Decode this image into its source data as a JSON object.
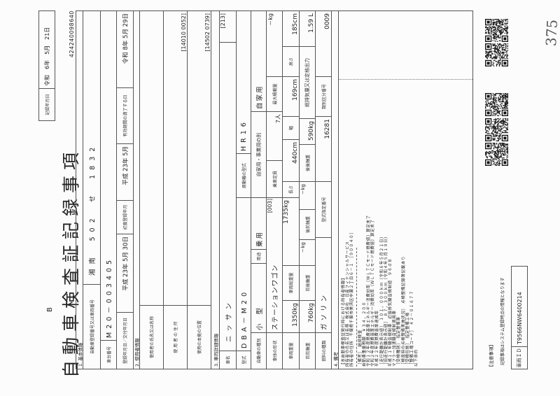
{
  "document": {
    "form_type": "B",
    "title": "自動車検査証記録事項",
    "record_date_label": "記録年月日",
    "record_date": "令和　6年　5月　21日",
    "document_number": "424240098640"
  },
  "basic_info": {
    "section": "1. 基本情報",
    "registration_label": "自動車登録番号又は車両番号",
    "registration_number": "湘南　502　せ　1832",
    "chassis_label": "車台番号",
    "chassis_number": "M20－003405",
    "registration_date_label": "登録年月日／交付年月日",
    "registration_date": "平成 23年 5月 30日",
    "first_registration_label": "初度登録年月",
    "first_registration": "平成 23年 5月",
    "expiry_label": "有効期間の満了する日",
    "expiry_date": "令和 8年 5月 29日"
  },
  "user_info": {
    "section": "2. 使用者情報",
    "name_label": "使用者の氏名又は名称",
    "address_label": "使 用 者 の 住 所",
    "address_code": "[14010 0052]",
    "base_label": "使用の本拠の位置",
    "base_code": "[14502 0739]"
  },
  "vehicle": {
    "section": "3. 車両詳細情報",
    "maker_label": "車名",
    "maker": "ニッサン",
    "maker_code": "[213]",
    "model_label": "型式",
    "model": "DBA－M20",
    "engine_label": "原動機の型式",
    "engine": "HR16",
    "kind_label": "自動車の種別",
    "kind": "小 型",
    "use_label": "用途",
    "use": "乗用",
    "private_label": "自家用・事業用の別",
    "private": "自家用",
    "body_label": "車体の形状",
    "body": "ステーションワゴン",
    "body_code": "[003]",
    "capacity_label": "乗車定員",
    "capacity": "7人",
    "max_load_label": "最大積載量",
    "max_load": "－kg",
    "weight_label": "車両重量",
    "weight": "1350kg",
    "gross_label": "車両総重量",
    "gross": "1735kg",
    "length_label": "長さ",
    "length": "440cm",
    "width_label": "幅",
    "width": "169cm",
    "height_label": "高さ",
    "height": "185cm",
    "ff_label": "前前軸重",
    "ff": "760kg",
    "fr_label": "前後軸重",
    "fr": "－kg",
    "rf_label": "後前軸重",
    "rf": "－kg",
    "rr_label": "後後軸重",
    "rr": "590kg",
    "displacement_label": "総排気量又は定格出力",
    "displacement": "1.59 L",
    "fuel_label": "燃料の種類",
    "fuel": "ガソリン",
    "approval_label": "型式指定番号",
    "approval": "16281",
    "category_label": "類別区分番号",
    "category": "0009"
  },
  "notes": {
    "section": "4. 備考",
    "owner_lines": [
      "【本自動車検査証発行時における所有者情報】",
      "所有者の氏名又は名称　株式会社　日産フィナンシャルサービス",
      "所有者の住所　千葉県千葉市美浜区中瀬２丁目６－１　［９００４０］"
    ],
    "lines": [
      "［備考］　継続検査",
      "自動車重量税額　￥３４，２００",
      "令和１２年度燃費基準エネルギー消費効率（ＷＬＴＣモード燃費値）算定未了",
      "令和２年度燃費基準エネルギー消費効率（ＷＬＴＣモード燃費値）算定未了",
      "平成２２年度燃費基準達成率",
      "［走行距離計表示値］　１０１，０００ｋｍ（令和６年５月２１日）",
      "［旧走行距離計表示値］　８７，３００ｋｍ（令和４年５月１９日）",
      "平成１１年騒音規制車　近接排気騒音規制値　９６ｄＢ",
      "マフラー加速騒音規制適用車",
      "［受検種別］　指定整備車",
      "［検査時の点検整備実施状況］　点検整備記録簿記載あり",
      "［受検形態］　指定整備工場",
      "［整備工場コード］　４２－０１６７７",
      "以下余白"
    ]
  },
  "footer": {
    "notice_title": "【注意事項】",
    "notice_text": "記録事項はシステム登録時点の情報となります",
    "vehicle_id_label": "車両ＩＤ",
    "vehicle_id": "T9566NW6400214",
    "handwritten_number": "375"
  }
}
